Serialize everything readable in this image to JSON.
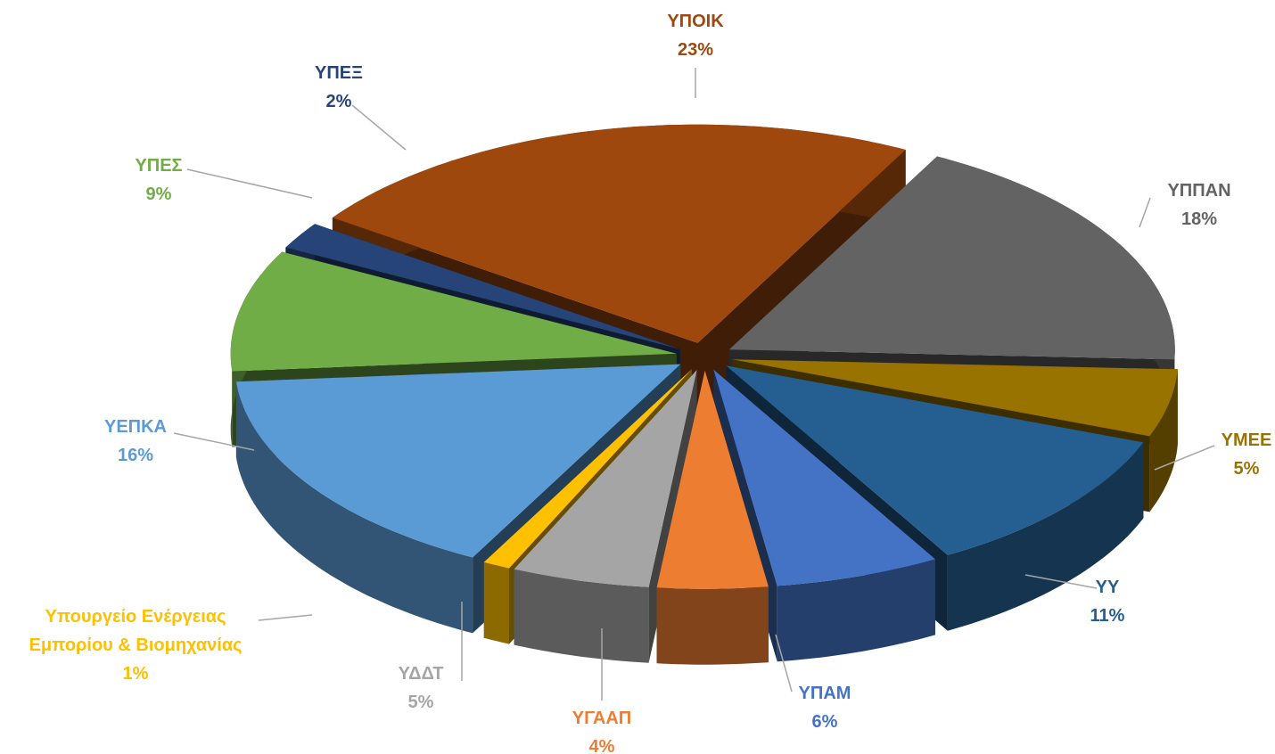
{
  "chart_data": {
    "type": "pie",
    "categories": [
      "ΥΠΟΙΚ",
      "ΥΠΠΑΝ",
      "ΥΜΕΕ",
      "ΥΥ",
      "ΥΠΑΜ",
      "ΥΓΑΑΠ",
      "ΥΔΔΤ",
      "Υπουργείο Ενέργειας Εμπορίου & Βιομηχανίας",
      "ΥΕΠΚΑ",
      "ΥΠΕΣ",
      "ΥΠΕΞ"
    ],
    "values": [
      23,
      18,
      5,
      11,
      6,
      4,
      5,
      1,
      16,
      9,
      2
    ],
    "value_labels": [
      "23%",
      "18%",
      "5%",
      "11%",
      "6%",
      "4%",
      "5%",
      "1%",
      "16%",
      "9%",
      "2%"
    ],
    "colors": [
      "#9e480e",
      "#636363",
      "#997300",
      "#255e91",
      "#4472c4",
      "#ed7d31",
      "#a5a5a5",
      "#ffc000",
      "#5b9bd5",
      "#70ad47",
      "#264478"
    ]
  }
}
